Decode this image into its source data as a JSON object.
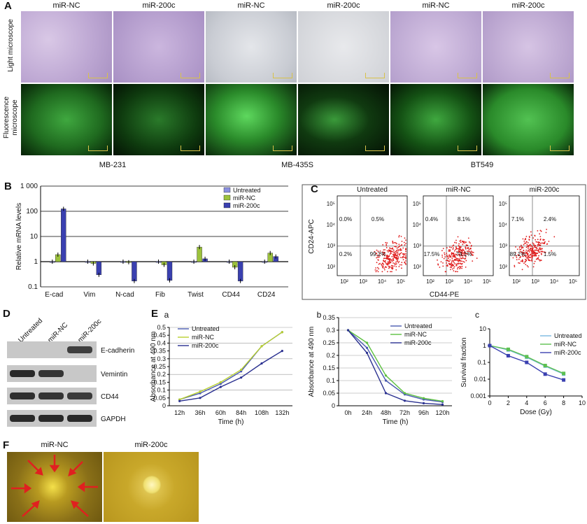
{
  "panel_letters": {
    "A": "A",
    "B": "B",
    "C": "C",
    "D": "D",
    "E": "E",
    "F": "F"
  },
  "panelA": {
    "col_labels": [
      "miR-NC",
      "miR-200c",
      "miR-NC",
      "miR-200c",
      "miR-NC",
      "miR-200c"
    ],
    "row_label_light": "Light microscope",
    "row_label_fluor_1": "Fluorescence",
    "row_label_fluor_2": "microscope",
    "cell_lines": [
      "MB-231",
      "MB-435S",
      "BT549"
    ]
  },
  "panelC": {
    "titles": [
      "Untreated",
      "miR-NC",
      "miR-200c"
    ],
    "ylabel": "CD24-APC",
    "xlabel": "CD44-PE",
    "ticks": [
      "10²",
      "10³",
      "10⁴",
      "10⁵"
    ],
    "quadrants": [
      [
        "0.0%",
        "0.5%",
        "0.2%",
        "99.2%"
      ],
      [
        "0.4%",
        "8.1%",
        "17.5%",
        "74.1%"
      ],
      [
        "7.1%",
        "2.4%",
        "89.1%",
        "1.5%"
      ]
    ],
    "dot_color": "#e01b1b"
  },
  "panelD": {
    "lanes": [
      "Untreated",
      "miR-NC",
      "miR-200c"
    ],
    "proteins": [
      "E-cadherin",
      "Vemintin",
      "CD44",
      "GAPDH"
    ],
    "band_intensity": [
      [
        0,
        0,
        0.7
      ],
      [
        0.9,
        0.8,
        0
      ],
      [
        0.85,
        0.8,
        0.75
      ],
      [
        0.9,
        0.9,
        0.9
      ]
    ]
  },
  "panelF": {
    "labels": [
      "miR-NC",
      "miR-200c"
    ]
  },
  "chart_data": [
    {
      "id": "B",
      "type": "bar",
      "ylabel": "Relative mRNA levels",
      "yscale": "log",
      "ylim": [
        0.1,
        1000
      ],
      "yticks": [
        "0.1",
        "1",
        "10",
        "100",
        "1 000"
      ],
      "categories": [
        "E-cad",
        "Vim",
        "N-cad",
        "Fib",
        "Twist",
        "CD44",
        "CD24"
      ],
      "series": [
        {
          "name": "Untreated",
          "color": "#8a8fe0",
          "values": [
            1,
            1,
            1,
            1,
            1,
            1,
            1
          ]
        },
        {
          "name": "miR-NC",
          "color": "#9cc23c",
          "values": [
            1.9,
            0.85,
            0.95,
            0.75,
            3.8,
            0.6,
            2.2
          ]
        },
        {
          "name": "miR-200c",
          "color": "#3a40b0",
          "values": [
            125,
            0.3,
            0.17,
            0.18,
            1.3,
            0.17,
            1.6
          ]
        }
      ],
      "legend": "top-right"
    },
    {
      "id": "Ea",
      "sublabel": "a",
      "type": "line",
      "ylabel": "Absorbance at 490 nm",
      "xlabel": "Time (h)",
      "ylim": [
        0,
        0.5
      ],
      "yticks": [
        "0",
        "0.05",
        "0.1",
        "0.15",
        "0.2",
        "0.25",
        "0.3",
        "0.35",
        "0.4",
        "0.45",
        "0.5"
      ],
      "categories": [
        "12h",
        "36h",
        "60h",
        "84h",
        "108h",
        "132h"
      ],
      "series": [
        {
          "name": "Untreated",
          "color": "#4a5ab0",
          "values": [
            0.04,
            0.08,
            0.14,
            0.22,
            0.38,
            0.47
          ]
        },
        {
          "name": "miR-NC",
          "color": "#b8d030",
          "values": [
            0.04,
            0.09,
            0.15,
            0.23,
            0.38,
            0.47
          ]
        },
        {
          "name": "miR-200c",
          "color": "#2a3090",
          "values": [
            0.03,
            0.05,
            0.12,
            0.18,
            0.27,
            0.35
          ]
        }
      ],
      "legend": "top-left"
    },
    {
      "id": "Eb",
      "sublabel": "b",
      "type": "line",
      "ylabel": "Absorbance at 490 nm",
      "xlabel": "Time (h)",
      "ylim": [
        0,
        0.35
      ],
      "yticks": [
        "0",
        "0.05",
        "0.1",
        "0.15",
        "0.2",
        "0.25",
        "0.3",
        "0.35"
      ],
      "categories": [
        "0h",
        "24h",
        "48h",
        "72h",
        "96h",
        "120h"
      ],
      "series": [
        {
          "name": "Untreated",
          "color": "#4a5ab0",
          "values": [
            0.3,
            0.23,
            0.1,
            0.045,
            0.025,
            0.015
          ]
        },
        {
          "name": "miR-NC",
          "color": "#5cc040",
          "values": [
            0.3,
            0.25,
            0.12,
            0.05,
            0.03,
            0.018
          ]
        },
        {
          "name": "miR-200c",
          "color": "#2a3090",
          "values": [
            0.3,
            0.21,
            0.05,
            0.02,
            0.01,
            0.005
          ]
        }
      ],
      "legend": "top-right"
    },
    {
      "id": "Ec",
      "sublabel": "c",
      "type": "line",
      "ylabel": "Survival fraction",
      "xlabel": "Dose (Gy)",
      "yscale": "log",
      "ylim": [
        0.001,
        10
      ],
      "yticks": [
        "0.001",
        "0.01",
        "0.1",
        "1",
        "10"
      ],
      "xlim": [
        0,
        10
      ],
      "xticks": [
        "0",
        "2",
        "4",
        "6",
        "8",
        "10"
      ],
      "series": [
        {
          "name": "Untreated",
          "color": "#7ab8e0",
          "x": [
            0,
            2,
            4,
            6,
            8
          ],
          "values": [
            1,
            0.55,
            0.2,
            0.06,
            0.02
          ]
        },
        {
          "name": "miR-NC",
          "color": "#5cc050",
          "x": [
            0,
            2,
            4,
            6,
            8
          ],
          "values": [
            1,
            0.6,
            0.22,
            0.065,
            0.022
          ]
        },
        {
          "name": "miR-200c",
          "color": "#3a40b0",
          "x": [
            0,
            2,
            4,
            6,
            8
          ],
          "values": [
            1,
            0.25,
            0.1,
            0.02,
            0.009
          ]
        }
      ],
      "legend": "top-right"
    }
  ]
}
